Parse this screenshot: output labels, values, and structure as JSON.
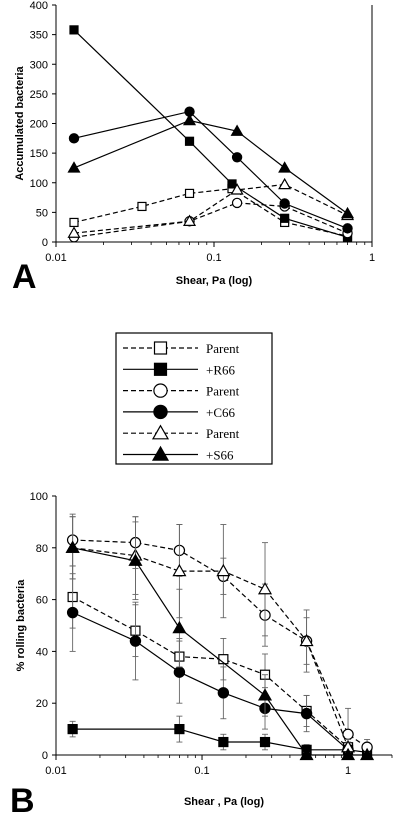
{
  "legend": {
    "entries": [
      {
        "label": "Parent",
        "marker": "square",
        "filled": false,
        "dash": true
      },
      {
        "label": "+R66",
        "marker": "square",
        "filled": true,
        "dash": false
      },
      {
        "label": "Parent",
        "marker": "circle",
        "filled": false,
        "dash": true
      },
      {
        "label": "+C66",
        "marker": "circle",
        "filled": true,
        "dash": false
      },
      {
        "label": "Parent",
        "marker": "triangle",
        "filled": false,
        "dash": true
      },
      {
        "label": "+S66",
        "marker": "triangle",
        "filled": true,
        "dash": false
      }
    ]
  },
  "chart_data": [
    {
      "type": "line",
      "panel_label": "A",
      "xlabel": "Shear, Pa (log)",
      "ylabel": "Accumulated bacteria",
      "x_scale": "log",
      "xlim": [
        0.01,
        1
      ],
      "ylim": [
        0,
        400
      ],
      "x_ticks": [
        "0.01",
        "0.1",
        "1"
      ],
      "y_ticks": [
        "0",
        "50",
        "100",
        "150",
        "200",
        "250",
        "300",
        "350",
        "400"
      ],
      "grid": false,
      "series": [
        {
          "name": "Parent",
          "marker": "square",
          "filled": false,
          "dash": true,
          "x": [
            0.013,
            0.035,
            0.07,
            0.13,
            0.28,
            0.7
          ],
          "y": [
            33,
            60,
            82,
            90,
            33,
            10
          ]
        },
        {
          "name": "+R66",
          "marker": "square",
          "filled": true,
          "dash": false,
          "x": [
            0.013,
            0.07,
            0.13,
            0.28,
            0.7
          ],
          "y": [
            358,
            170,
            98,
            40,
            8
          ]
        },
        {
          "name": "Parent",
          "marker": "circle",
          "filled": false,
          "dash": true,
          "x": [
            0.013,
            0.07,
            0.14,
            0.28,
            0.7
          ],
          "y": [
            8,
            35,
            66,
            60,
            15
          ]
        },
        {
          "name": "+C66",
          "marker": "circle",
          "filled": true,
          "dash": false,
          "x": [
            0.013,
            0.07,
            0.14,
            0.28,
            0.7
          ],
          "y": [
            175,
            220,
            143,
            65,
            23
          ]
        },
        {
          "name": "Parent",
          "marker": "triangle",
          "filled": false,
          "dash": true,
          "x": [
            0.013,
            0.07,
            0.14,
            0.28,
            0.7
          ],
          "y": [
            15,
            35,
            88,
            97,
            45
          ]
        },
        {
          "name": "+S66",
          "marker": "triangle",
          "filled": true,
          "dash": false,
          "x": [
            0.013,
            0.07,
            0.14,
            0.28,
            0.7
          ],
          "y": [
            125,
            205,
            187,
            125,
            48
          ]
        }
      ]
    },
    {
      "type": "line",
      "panel_label": "B",
      "xlabel": "Shear , Pa (log)",
      "ylabel": "% rolling bacteria",
      "x_scale": "log",
      "xlim": [
        0.01,
        2
      ],
      "ylim": [
        0,
        100
      ],
      "x_ticks": [
        "0.01",
        "0.1",
        "1"
      ],
      "y_ticks": [
        "0",
        "20",
        "40",
        "60",
        "80",
        "100"
      ],
      "grid": false,
      "series": [
        {
          "name": "Parent",
          "marker": "square",
          "filled": false,
          "dash": true,
          "x": [
            0.013,
            0.035,
            0.07,
            0.14,
            0.27,
            0.52,
            1.0
          ],
          "y": [
            61,
            48,
            38,
            37,
            31,
            17,
            3
          ],
          "err": [
            12,
            10,
            7,
            8,
            8,
            6,
            3
          ]
        },
        {
          "name": "+R66",
          "marker": "square",
          "filled": true,
          "dash": false,
          "x": [
            0.013,
            0.07,
            0.14,
            0.27,
            0.52,
            1.0,
            1.35
          ],
          "y": [
            10,
            10,
            5,
            5,
            2,
            2,
            1
          ],
          "err": [
            3,
            5,
            3,
            3,
            2,
            2,
            1
          ]
        },
        {
          "name": "Parent",
          "marker": "circle",
          "filled": false,
          "dash": true,
          "x": [
            0.013,
            0.035,
            0.07,
            0.14,
            0.27,
            0.52,
            1.0,
            1.35
          ],
          "y": [
            83,
            82,
            79,
            69,
            54,
            44,
            8,
            3
          ],
          "err": [
            10,
            10,
            10,
            7,
            12,
            9,
            10,
            3
          ]
        },
        {
          "name": "+C66",
          "marker": "circle",
          "filled": true,
          "dash": false,
          "x": [
            0.013,
            0.035,
            0.07,
            0.14,
            0.27,
            0.52,
            1.0
          ],
          "y": [
            55,
            44,
            32,
            24,
            18,
            16,
            2
          ],
          "err": [
            15,
            15,
            12,
            10,
            8,
            7,
            3
          ]
        },
        {
          "name": "Parent",
          "marker": "triangle",
          "filled": false,
          "dash": true,
          "x": [
            0.013,
            0.035,
            0.07,
            0.14,
            0.27,
            0.52,
            1.0
          ],
          "y": [
            80,
            77,
            71,
            71,
            64,
            44,
            3
          ],
          "err": [
            12,
            15,
            18,
            18,
            18,
            12,
            3
          ]
        },
        {
          "name": "+S66",
          "marker": "triangle",
          "filled": true,
          "dash": false,
          "x": [
            0.013,
            0.035,
            0.07,
            0.27,
            0.52,
            1.0,
            1.35
          ],
          "y": [
            80,
            75,
            49,
            23,
            0,
            0,
            0
          ],
          "err": [
            12,
            15,
            15,
            8,
            1,
            1,
            1
          ]
        }
      ]
    }
  ]
}
